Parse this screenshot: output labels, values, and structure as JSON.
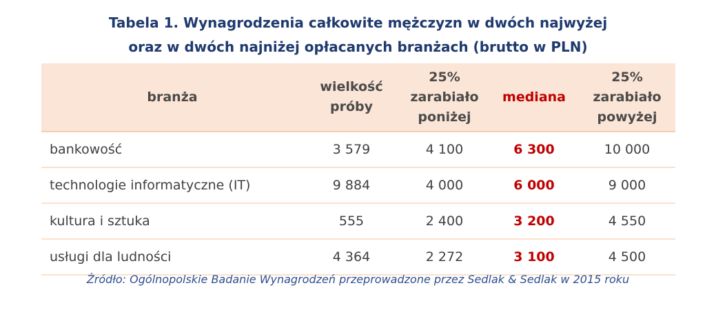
{
  "header": {
    "title_lines": [
      "Tabela 1. Wynagrodzenia całkowite mężczyzn w dwóch najwyżej",
      "oraz w dwóch najniżej opłacanych branżach (brutto w PLN)"
    ]
  },
  "table": {
    "columns": [
      [
        "branża"
      ],
      [
        "wielkość",
        "próby"
      ],
      [
        "25%",
        "zarabiało",
        "poniżej"
      ],
      [
        "mediana"
      ],
      [
        "25%",
        "zarabiało",
        "powyżej"
      ]
    ],
    "rows": [
      [
        "bankowość",
        "3 579",
        "4 100",
        "6 300",
        "10 000"
      ],
      [
        "technologie informatyczne (IT)",
        "9 884",
        "4 000",
        "6 000",
        "9 000"
      ],
      [
        "kultura i sztuka",
        "555",
        "2 400",
        "3 200",
        "4 550"
      ],
      [
        "usługi dla ludności",
        "4 364",
        "2 272",
        "3 100",
        "4 500"
      ]
    ]
  },
  "source": "Źródło: Ogólnopolskie Badanie Wynagrodzeń przeprowadzone przez Sedlak & Sedlak w 2015 roku"
}
